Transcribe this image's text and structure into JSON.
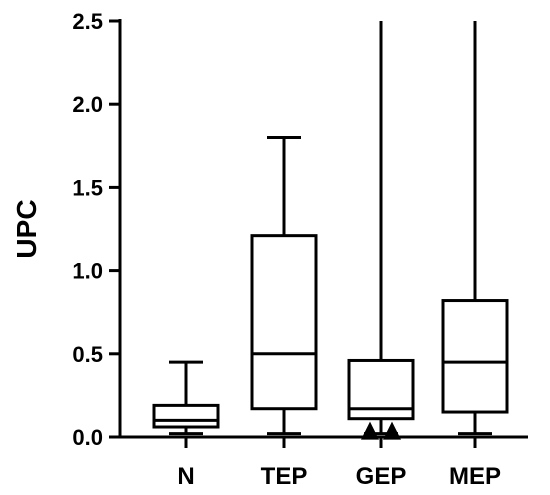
{
  "chart_data": {
    "type": "boxplot",
    "ylabel": "UPC",
    "xlabel": "",
    "ylim": [
      0,
      2.5
    ],
    "yticks": [
      "0.0",
      "0.5",
      "1.0",
      "1.5",
      "2.0",
      "2.5"
    ],
    "grid": false,
    "categories": [
      "N",
      "TEP",
      "GEP",
      "MEP"
    ],
    "boxes": [
      {
        "category": "N",
        "min": 0.02,
        "q1": 0.06,
        "median": 0.1,
        "q3": 0.19,
        "max": 0.45
      },
      {
        "category": "TEP",
        "min": 0.02,
        "q1": 0.17,
        "median": 0.5,
        "q3": 1.21,
        "max": 1.8
      },
      {
        "category": "GEP",
        "min": 0.02,
        "q1": 0.11,
        "median": 0.17,
        "q3": 0.46,
        "max": 2.5
      },
      {
        "category": "MEP",
        "min": 0.02,
        "q1": 0.15,
        "median": 0.45,
        "q3": 0.82,
        "max": 2.5
      }
    ],
    "points": [
      {
        "category": "GEP",
        "y": 0.02
      },
      {
        "category": "GEP",
        "y": 0.02
      }
    ],
    "colors": {
      "stroke": "#000000",
      "marker": "#000000"
    }
  }
}
